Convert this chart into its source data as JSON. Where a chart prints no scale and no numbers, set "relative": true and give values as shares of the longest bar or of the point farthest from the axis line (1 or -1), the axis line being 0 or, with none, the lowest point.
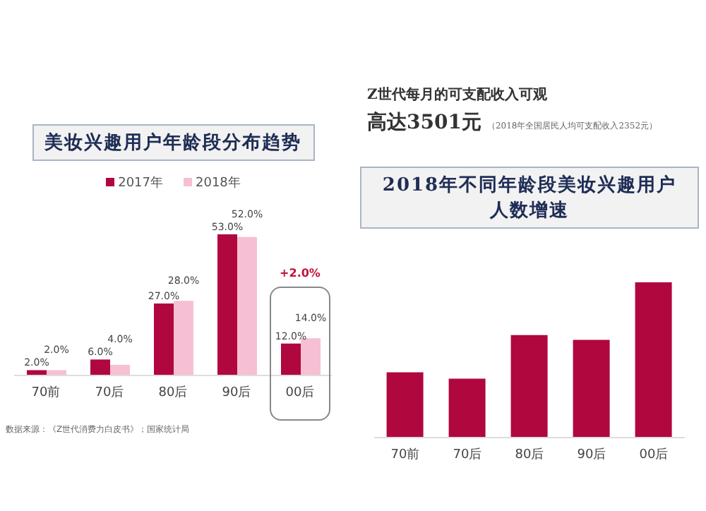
{
  "chart_data": [
    {
      "type": "bar",
      "title": "美妆兴趣用户年龄段分布趋势",
      "categories": [
        "70前",
        "70后",
        "80后",
        "90后",
        "00后"
      ],
      "series": [
        {
          "name": "2017年",
          "color": "#b0073f",
          "values": [
            2.0,
            6.0,
            27.0,
            53.0,
            12.0
          ],
          "value_labels": [
            "2.0%",
            "6.0%",
            "27.0%",
            "53.0%",
            "12.0%"
          ]
        },
        {
          "name": "2018年",
          "color": "#f7bfd4",
          "values": [
            2.0,
            4.0,
            28.0,
            52.0,
            14.0
          ],
          "value_labels": [
            "2.0%",
            "4.0%",
            "28.0%",
            "52.0%",
            "14.0%"
          ]
        }
      ],
      "legend": "top",
      "grid": false,
      "annotations": [
        "+2.0%",
        "数据来源：《Z世代消费力白皮书》；国家统计局"
      ]
    },
    {
      "type": "other",
      "annotations": [
        "Z世代每月的可支配收入可观",
        "高达3501元",
        "（2018年全国居民人均可支配收入2352元）"
      ]
    },
    {
      "type": "bar",
      "title": "2018年不同年龄段美妆兴趣用户人数增速",
      "categories": [
        "70前",
        "70后",
        "80后",
        "90后",
        "00后"
      ],
      "values": [
        0.42,
        0.38,
        0.66,
        0.63,
        1
      ],
      "color": "#b0073f",
      "relative": true,
      "grid": false
    }
  ]
}
